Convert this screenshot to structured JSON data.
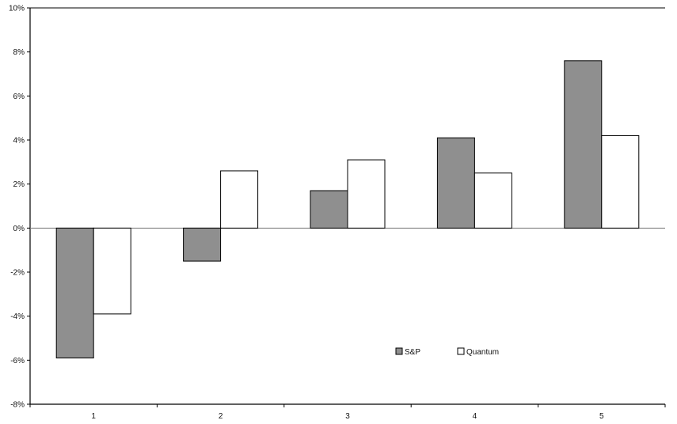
{
  "chart_data": {
    "type": "bar",
    "title": "",
    "xlabel": "",
    "ylabel": "",
    "categories": [
      "1",
      "2",
      "3",
      "4",
      "5"
    ],
    "series": [
      {
        "name": "S&P",
        "values": [
          -5.9,
          -1.5,
          1.7,
          4.1,
          7.6
        ],
        "fill": "#8f8f8f"
      },
      {
        "name": "Quantum",
        "values": [
          -3.9,
          2.6,
          3.1,
          2.5,
          4.2
        ],
        "fill": "#ffffff"
      }
    ],
    "ylim": [
      -8,
      10
    ],
    "yticks": [
      -8,
      -6,
      -4,
      -2,
      0,
      2,
      4,
      6,
      8,
      10
    ],
    "ytick_labels": [
      "-8%",
      "-6%",
      "-4%",
      "-2%",
      "0%",
      "2%",
      "4%",
      "6%",
      "8%",
      "10%"
    ],
    "grid": false,
    "legend_position": "lower-right"
  }
}
